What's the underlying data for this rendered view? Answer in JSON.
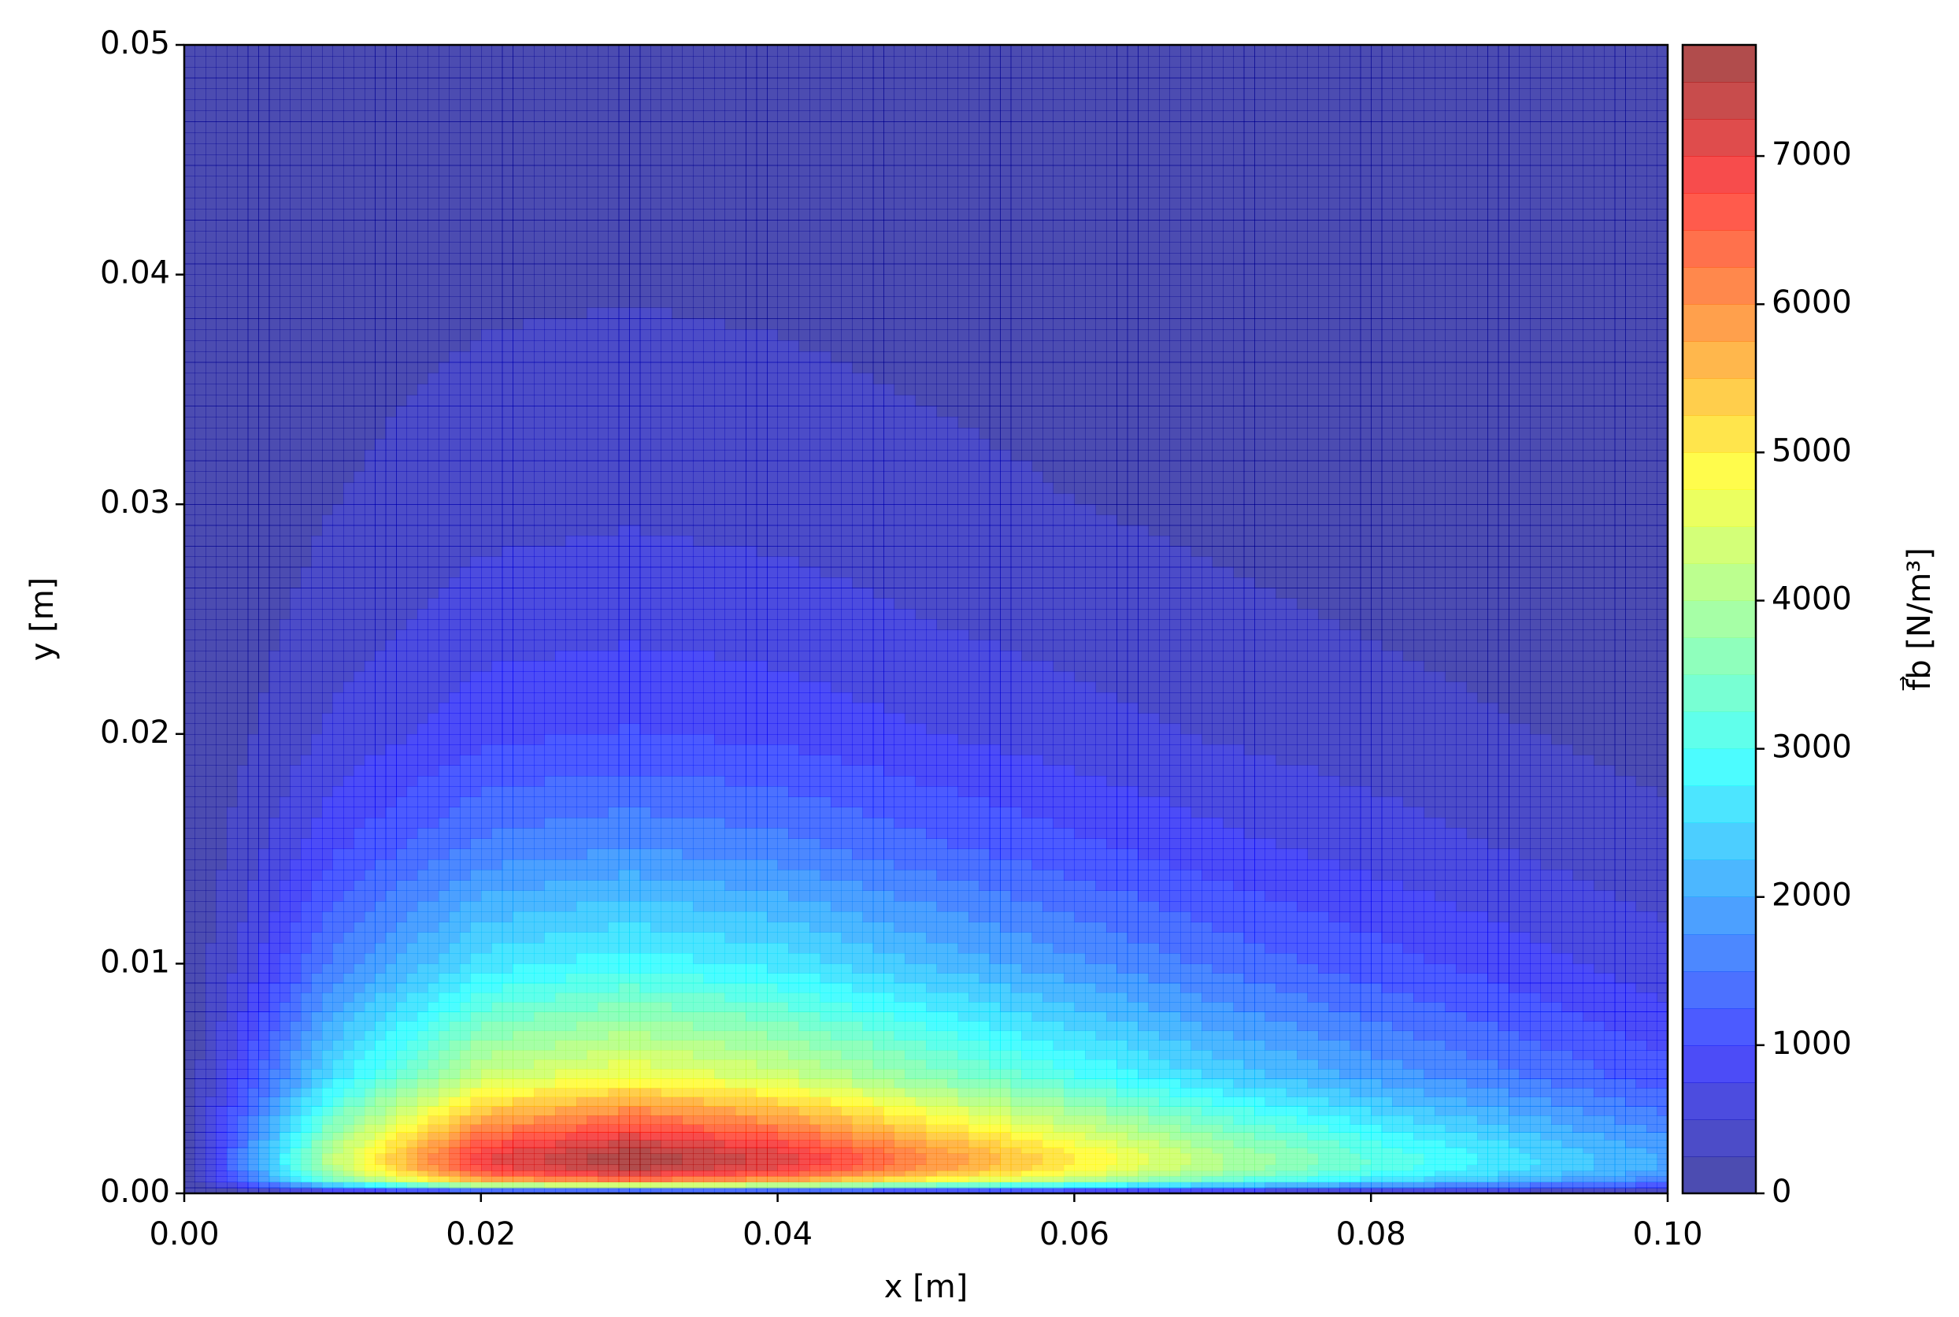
{
  "chart_data": {
    "type": "contour",
    "x": [
      0,
      0.005,
      0.01,
      0.02,
      0.03,
      0.04,
      0.05,
      0.06,
      0.07,
      0.08,
      0.09,
      0.1
    ],
    "y": [
      0,
      0.0005,
      0.001,
      0.0015,
      0.002,
      0.003,
      0.005,
      0.0075,
      0.01,
      0.015,
      0.02,
      0.025,
      0.03,
      0.04,
      0.05
    ],
    "z": [
      [
        0,
        0,
        0,
        0,
        0,
        0,
        0,
        0,
        0,
        0,
        0,
        0
      ],
      [
        0,
        1548,
        3251,
        5418,
        6000,
        5570,
        4714,
        3935,
        3160,
        2541,
        2037,
        1566
      ],
      [
        0,
        1936,
        4066,
        6776,
        7500,
        6963,
        5887,
        4912,
        3941,
        3162,
        2527,
        1932
      ],
      [
        0,
        2000,
        4200,
        7000,
        7750,
        7189,
        6073,
        5059,
        4055,
        3251,
        2592,
        1972
      ],
      [
        0,
        1936,
        4066,
        6776,
        7500,
        6956,
        5870,
        4883,
        3909,
        3130,
        2488,
        1883
      ],
      [
        0,
        1704,
        3578,
        5964,
        6600,
        6116,
        5150,
        4275,
        3416,
        2728,
        2159,
        1616
      ],
      [
        0,
        1238,
        2600,
        4333,
        4800,
        4435,
        3719,
        3072,
        2444,
        1943,
        1522,
        1114
      ],
      [
        0,
        980,
        2058,
        3430,
        3800,
        3502,
        2923,
        2399,
        1899,
        1501,
        1161,
        827
      ],
      [
        0,
        748,
        1571,
        2618,
        2900,
        2666,
        2213,
        1806,
        1423,
        1117,
        853,
        591
      ],
      [
        0,
        452,
        949,
        1582,
        1750,
        1603,
        1318,
        1063,
        829,
        642,
        479,
        313
      ],
      [
        0,
        264,
        554,
        924,
        1020,
        931,
        758,
        604,
        466,
        357,
        259,
        161
      ],
      [
        0,
        176,
        370,
        616,
        680,
        618,
        498,
        392,
        299,
        226,
        160,
        94
      ],
      [
        0,
        116,
        244,
        406,
        450,
        405,
        324,
        252,
        190,
        142,
        98,
        55
      ],
      [
        0,
        56,
        118,
        196,
        220,
        194,
        152,
        115,
        85,
        62,
        41,
        20
      ],
      [
        0,
        28,
        59,
        98,
        110,
        96,
        73,
        54,
        39,
        28,
        17,
        8
      ]
    ],
    "levels": [
      0,
      250,
      500,
      750,
      1000,
      1250,
      1500,
      1750,
      2000,
      2250,
      2500,
      2750,
      3000,
      3250,
      3500,
      3750,
      4000,
      4250,
      4500,
      4750,
      5000,
      5250,
      5500,
      5750,
      6000,
      6250,
      6500,
      6750,
      7000,
      7250,
      7500,
      7750
    ],
    "colormap": "jet",
    "alpha": 0.7,
    "xlim": [
      0,
      0.1
    ],
    "ylim": [
      0,
      0.05
    ],
    "xticks": [
      {
        "value": 0,
        "label": "0.00"
      },
      {
        "value": 0.02,
        "label": "0.02"
      },
      {
        "value": 0.04,
        "label": "0.04"
      },
      {
        "value": 0.06,
        "label": "0.06"
      },
      {
        "value": 0.08,
        "label": "0.08"
      },
      {
        "value": 0.1,
        "label": "0.10"
      }
    ],
    "yticks": [
      {
        "value": 0,
        "label": "0.00"
      },
      {
        "value": 0.01,
        "label": "0.01"
      },
      {
        "value": 0.02,
        "label": "0.02"
      },
      {
        "value": 0.03,
        "label": "0.03"
      },
      {
        "value": 0.04,
        "label": "0.04"
      },
      {
        "value": 0.05,
        "label": "0.05"
      }
    ],
    "xlabel": "x [m]",
    "ylabel": "y [m]",
    "colorbar": {
      "label": "f⃗b [N/m³]",
      "ticks": [
        0,
        1000,
        2000,
        3000,
        4000,
        5000,
        6000,
        7000
      ]
    }
  }
}
